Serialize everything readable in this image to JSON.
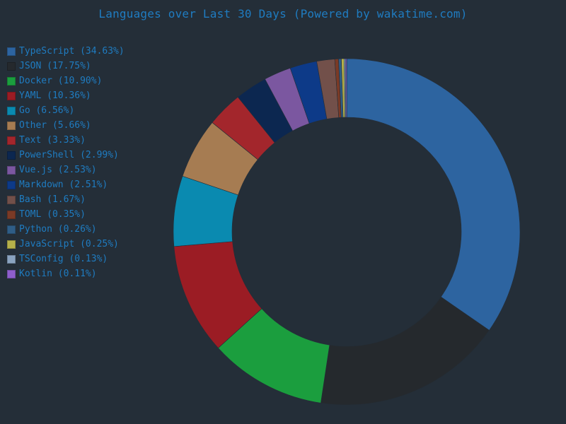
{
  "chart_data": {
    "type": "pie",
    "style": "donut",
    "title": "Languages over Last 30 Days (Powered by wakatime.com)",
    "legend_position": "left",
    "slices": [
      {
        "label": "TypeScript (34.63%)",
        "name": "TypeScript",
        "value": 34.63,
        "color": "#2d64a0"
      },
      {
        "label": "JSON (17.75%)",
        "name": "JSON",
        "value": 17.75,
        "color": "#25292d"
      },
      {
        "label": "Docker (10.90%)",
        "name": "Docker",
        "value": 10.9,
        "color": "#1b9e3e"
      },
      {
        "label": "YAML (10.36%)",
        "name": "YAML",
        "value": 10.36,
        "color": "#9b1c24"
      },
      {
        "label": "Go (6.56%)",
        "name": "Go",
        "value": 6.56,
        "color": "#0a8ab0"
      },
      {
        "label": "Other (5.66%)",
        "name": "Other",
        "value": 5.66,
        "color": "#a67c52"
      },
      {
        "label": "Text (3.33%)",
        "name": "Text",
        "value": 3.33,
        "color": "#a3262c"
      },
      {
        "label": "PowerShell (2.99%)",
        "name": "PowerShell",
        "value": 2.99,
        "color": "#0c2750"
      },
      {
        "label": "Vue.js (2.53%)",
        "name": "Vue.js",
        "value": 2.53,
        "color": "#7b57a0"
      },
      {
        "label": "Markdown (2.51%)",
        "name": "Markdown",
        "value": 2.51,
        "color": "#0d3a88"
      },
      {
        "label": "Bash (1.67%)",
        "name": "Bash",
        "value": 1.67,
        "color": "#72504a"
      },
      {
        "label": "TOML (0.35%)",
        "name": "TOML",
        "value": 0.35,
        "color": "#7a3a26"
      },
      {
        "label": "Python (0.26%)",
        "name": "Python",
        "value": 0.26,
        "color": "#2f5d86"
      },
      {
        "label": "JavaScript (0.25%)",
        "name": "JavaScript",
        "value": 0.25,
        "color": "#b5b04a"
      },
      {
        "label": "TSConfig (0.13%)",
        "name": "TSConfig",
        "value": 0.13,
        "color": "#8aa3c0"
      },
      {
        "label": "Kotlin (0.11%)",
        "name": "Kotlin",
        "value": 0.11,
        "color": "#8e5ecc"
      }
    ]
  }
}
